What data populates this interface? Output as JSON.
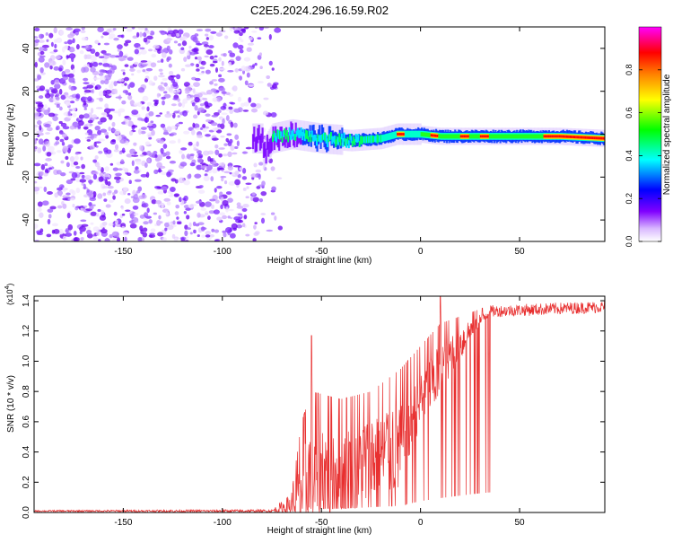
{
  "title": "C2E5.2024.296.16.59.R02",
  "chart_data": [
    {
      "type": "heatmap",
      "xlabel": "Height of straight line (km)",
      "ylabel": "Frequency (Hz)",
      "xlim": [
        -195,
        93
      ],
      "ylim": [
        -50,
        50
      ],
      "xticks": [
        -150,
        -100,
        -50,
        0,
        50
      ],
      "yticks": [
        -40,
        -20,
        0,
        20,
        40
      ],
      "colorbar": {
        "label": "Normalized spectral amplitude",
        "range": [
          0.0,
          1.0
        ],
        "ticks": [
          "0.0",
          "0.2",
          "0.4",
          "0.6",
          "0.8"
        ],
        "tick_values": [
          0.0,
          0.2,
          0.4,
          0.6,
          0.8
        ],
        "colors": [
          "#ffffff",
          "#e0c8ff",
          "#7000ff",
          "#0000ff",
          "#00ffff",
          "#00ff00",
          "#ffff00",
          "#ff8000",
          "#ff0000",
          "#ff00ff"
        ]
      },
      "noise_region_x": [
        -195,
        -75
      ],
      "signal_track": [
        {
          "x": -80,
          "y": -10
        },
        {
          "x": -75,
          "y": -2
        },
        {
          "x": -65,
          "y": 0
        },
        {
          "x": -50,
          "y": -2
        },
        {
          "x": -35,
          "y": -3
        },
        {
          "x": -20,
          "y": -2
        },
        {
          "x": -12,
          "y": 0
        },
        {
          "x": 0,
          "y": 0
        },
        {
          "x": 10,
          "y": -1
        },
        {
          "x": 30,
          "y": -1
        },
        {
          "x": 50,
          "y": -1
        },
        {
          "x": 70,
          "y": -1
        },
        {
          "x": 93,
          "y": -2
        }
      ]
    },
    {
      "type": "line",
      "xlabel": "Height of straight line (km)",
      "ylabel": "SNR (10 * v/v)",
      "multiplier_label": "(x10",
      "multiplier_exp": "4",
      "xlim": [
        -195,
        93
      ],
      "ylim": [
        0,
        1.43
      ],
      "xticks": [
        -150,
        -100,
        -50,
        0,
        50
      ],
      "yticks": [
        "0.0",
        "0.2",
        "0.4",
        "0.6",
        "0.8",
        "1.0",
        "1.2",
        "1.4"
      ],
      "ytick_values": [
        0.0,
        0.2,
        0.4,
        0.6,
        0.8,
        1.0,
        1.2,
        1.4
      ],
      "series": [
        {
          "color": "#e83030",
          "envelope": [
            {
              "x": -195,
              "base": 0.01,
              "amp": 0.005
            },
            {
              "x": -75,
              "base": 0.01,
              "amp": 0.01
            },
            {
              "x": -65,
              "base": 0.05,
              "amp": 0.08
            },
            {
              "x": -60,
              "base": 0.15,
              "amp": 0.45
            },
            {
              "x": -55,
              "base": 0.25,
              "amp": 0.55
            },
            {
              "x": -40,
              "base": 0.25,
              "amp": 0.5
            },
            {
              "x": -25,
              "base": 0.35,
              "amp": 0.45
            },
            {
              "x": -10,
              "base": 0.45,
              "amp": 0.5
            },
            {
              "x": 0,
              "base": 0.75,
              "amp": 0.35
            },
            {
              "x": 10,
              "base": 0.95,
              "amp": 0.3
            },
            {
              "x": 25,
              "base": 1.2,
              "amp": 0.12
            },
            {
              "x": 35,
              "base": 1.33,
              "amp": 0.04
            },
            {
              "x": 93,
              "base": 1.36,
              "amp": 0.04
            }
          ]
        }
      ]
    }
  ]
}
